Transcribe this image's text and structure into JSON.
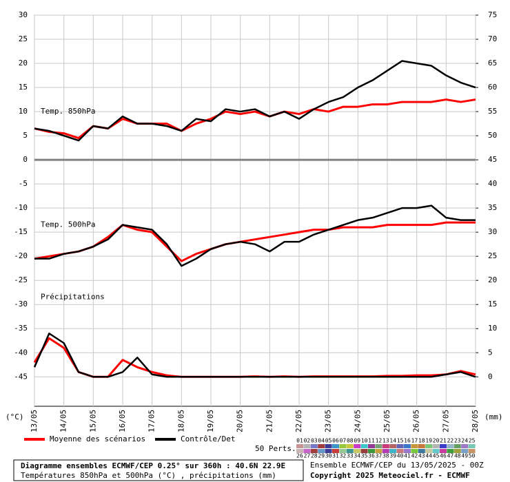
{
  "chart_data": {
    "type": "line",
    "x": [
      0,
      12,
      24,
      36,
      48,
      60,
      72,
      84,
      96,
      108,
      120,
      132,
      144,
      156,
      168,
      180,
      192,
      204,
      216,
      228,
      240,
      252,
      264,
      276,
      288,
      300,
      312,
      324,
      336,
      348,
      360
    ],
    "xlim": [
      0,
      360
    ],
    "xticks": [
      {
        "value": 0,
        "label": "13/05"
      },
      {
        "value": 24,
        "label": "14/05"
      },
      {
        "value": 48,
        "label": "15/05"
      },
      {
        "value": 72,
        "label": "16/05"
      },
      {
        "value": 96,
        "label": "17/05"
      },
      {
        "value": 120,
        "label": "18/05"
      },
      {
        "value": 144,
        "label": "19/05"
      },
      {
        "value": 168,
        "label": "20/05"
      },
      {
        "value": 192,
        "label": "21/05"
      },
      {
        "value": 216,
        "label": "22/05"
      },
      {
        "value": 240,
        "label": "23/05"
      },
      {
        "value": 264,
        "label": "24/05"
      },
      {
        "value": 288,
        "label": "25/05"
      },
      {
        "value": 312,
        "label": "26/05"
      },
      {
        "value": 336,
        "label": "27/05"
      },
      {
        "value": 360,
        "label": "28/05"
      }
    ],
    "ylim": [
      -51.1,
      30
    ],
    "yticks": [
      30,
      25,
      20,
      15,
      10,
      5,
      0,
      -5,
      -10,
      -15,
      -20,
      -25,
      -30,
      -35,
      -40,
      -45
    ],
    "y2lim": [
      -6.1,
      75
    ],
    "y2ticks": [
      75,
      70,
      65,
      60,
      55,
      50,
      45,
      40,
      35,
      30,
      25,
      20,
      15,
      10,
      5,
      0
    ],
    "ylabel": "(°C)",
    "y2label": "(mm)",
    "grid": true,
    "panels": [
      "Temp. 850hPa",
      "Temp. 500hPa",
      "Précipitations"
    ],
    "series": [
      {
        "name": "Moyenne des scénarios",
        "color": "#ff0000",
        "t850": [
          6.5,
          5.8,
          5.5,
          4.5,
          7,
          6.5,
          8.5,
          7.5,
          7.5,
          7.5,
          6,
          7.5,
          8.5,
          10,
          9.5,
          10,
          9,
          10,
          9.5,
          10.5,
          10,
          11,
          11,
          11.5,
          11.5,
          12,
          12,
          12,
          12.5,
          12,
          12.5
        ],
        "t500": [
          -20.5,
          -20,
          -19.5,
          -19,
          -18,
          -16,
          -13.5,
          -14.5,
          -15,
          -18,
          -21,
          -19.5,
          -18.5,
          -17.5,
          -17,
          -16.5,
          -16,
          -15.5,
          -15,
          -14.5,
          -14.5,
          -14,
          -14,
          -14,
          -13.5,
          -13.5,
          -13.5,
          -13.5,
          -13,
          -13,
          -13
        ],
        "precip": [
          3,
          8,
          6,
          1,
          0,
          0,
          3.5,
          2,
          1,
          0.3,
          0,
          0,
          0,
          0,
          0,
          0.1,
          0,
          0.1,
          0,
          0.1,
          0.1,
          0.1,
          0.1,
          0.1,
          0.2,
          0.2,
          0.3,
          0.3,
          0.5,
          1.2,
          0.5
        ]
      },
      {
        "name": "Contrôle/Det",
        "color": "#000000",
        "t850": [
          6.5,
          6,
          5,
          4,
          7,
          6.5,
          9,
          7.5,
          7.5,
          7,
          6,
          8.5,
          8,
          10.5,
          10,
          10.5,
          9,
          10,
          8.5,
          10.5,
          12,
          13,
          15,
          16.5,
          18.5,
          20.5,
          20,
          19.5,
          17.5,
          16,
          15
        ],
        "t500": [
          -20.5,
          -20.5,
          -19.5,
          -19,
          -18,
          -16.5,
          -13.5,
          -14,
          -14.5,
          -17.5,
          -22,
          -20.5,
          -18.5,
          -17.5,
          -17,
          -17.5,
          -19,
          -17,
          -17,
          -15.5,
          -14.5,
          -13.5,
          -12.5,
          -12,
          -11,
          -10,
          -10,
          -9.5,
          -12,
          -12.5,
          -12.5
        ],
        "precip": [
          2,
          9,
          7,
          1,
          0,
          0,
          1,
          4,
          0.5,
          0,
          0,
          0,
          0,
          0,
          0,
          0,
          0,
          0,
          0,
          0,
          0,
          0,
          0,
          0,
          0,
          0,
          0,
          0,
          0.5,
          1,
          0
        ]
      }
    ],
    "members_title": "50 Perts.",
    "members": [
      {
        "label": "01",
        "color": "#c89696"
      },
      {
        "label": "02",
        "color": "#b4b4b4"
      },
      {
        "label": "03",
        "color": "#7878c8"
      },
      {
        "label": "04",
        "color": "#a03c3c"
      },
      {
        "label": "05",
        "color": "#3c3c96"
      },
      {
        "label": "06",
        "color": "#3c96c8"
      },
      {
        "label": "07",
        "color": "#96c83c"
      },
      {
        "label": "08",
        "color": "#c8c83c"
      },
      {
        "label": "09",
        "color": "#c83cc8"
      },
      {
        "label": "10",
        "color": "#3cc8c8"
      },
      {
        "label": "11",
        "color": "#963c96"
      },
      {
        "label": "12",
        "color": "#78a078"
      },
      {
        "label": "13",
        "color": "#c83c78"
      },
      {
        "label": "14",
        "color": "#b46464"
      },
      {
        "label": "15",
        "color": "#6464b4"
      },
      {
        "label": "16",
        "color": "#3c78c8"
      },
      {
        "label": "17",
        "color": "#c8963c"
      },
      {
        "label": "18",
        "color": "#c8783c"
      },
      {
        "label": "19",
        "color": "#78c878"
      },
      {
        "label": "20",
        "color": "#b4b4b4"
      },
      {
        "label": "21",
        "color": "#3c3cc8"
      },
      {
        "label": "22",
        "color": "#96b4c8"
      },
      {
        "label": "23",
        "color": "#64a064"
      },
      {
        "label": "24",
        "color": "#a078c8"
      },
      {
        "label": "25",
        "color": "#78c8b4"
      },
      {
        "label": "26",
        "color": "#c8b4b4"
      },
      {
        "label": "27",
        "color": "#c864c8"
      },
      {
        "label": "28",
        "color": "#a03c3c"
      },
      {
        "label": "29",
        "color": "#6496c8"
      },
      {
        "label": "30",
        "color": "#3c3c96"
      },
      {
        "label": "31",
        "color": "#c83c3c"
      },
      {
        "label": "32",
        "color": "#96c896"
      },
      {
        "label": "33",
        "color": "#3c9696"
      },
      {
        "label": "34",
        "color": "#c8c864"
      },
      {
        "label": "35",
        "color": "#963c3c"
      },
      {
        "label": "36",
        "color": "#3c963c"
      },
      {
        "label": "37",
        "color": "#c8a03c"
      },
      {
        "label": "38",
        "color": "#b43cb4"
      },
      {
        "label": "39",
        "color": "#3cb4c8"
      },
      {
        "label": "40",
        "color": "#c87878"
      },
      {
        "label": "41",
        "color": "#9678c8"
      },
      {
        "label": "42",
        "color": "#78c83c"
      },
      {
        "label": "43",
        "color": "#3c78a0"
      },
      {
        "label": "44",
        "color": "#c8c8a0"
      },
      {
        "label": "45",
        "color": "#64c8c8"
      },
      {
        "label": "46",
        "color": "#c83ca0"
      },
      {
        "label": "47",
        "color": "#3ca03c"
      },
      {
        "label": "48",
        "color": "#a0a03c"
      },
      {
        "label": "49",
        "color": "#78a0c8"
      },
      {
        "label": "50",
        "color": "#c89664"
      }
    ],
    "footer": {
      "title": "Diagramme ensembles ECMWF/CEP 0.25° sur 360h : 40.6N 22.9E",
      "subtitle": "Températures 850hPa et 500hPa (°C) , précipitations (mm)",
      "run": "Ensemble ECMWF/CEP du 13/05/2025 - 00Z",
      "copyright": "Copyright 2025 Meteociel.fr - ECMWF"
    }
  }
}
